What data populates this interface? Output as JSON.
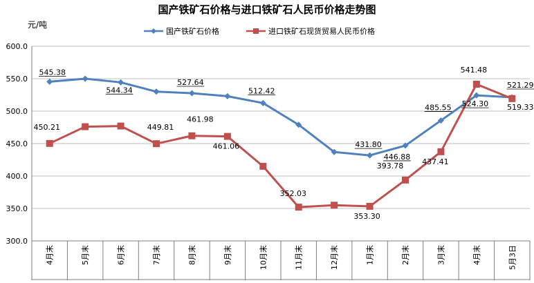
{
  "chart_data": {
    "type": "line",
    "title": "国产铁矿石价格与进口铁矿石人民币价格走势图",
    "ylabel": "元/吨",
    "xlabel": "",
    "ylim": [
      300,
      600
    ],
    "yticks": [
      "300.0",
      "350.0",
      "400.0",
      "450.0",
      "500.0",
      "550.0",
      "600.0"
    ],
    "grid": true,
    "legend_position": "top",
    "categories": [
      "4月末",
      "5月末",
      "6月末",
      "7月末",
      "8月末",
      "9月末",
      "10月末",
      "11月末",
      "12月末",
      "1月末",
      "2月末",
      "3月末",
      "4月末",
      "5月3日"
    ],
    "series": [
      {
        "name": "国产铁矿石价格",
        "color": "#4F81BD",
        "marker": "diamond",
        "values": [
          545.38,
          550.0,
          544.34,
          530.0,
          527.64,
          523.0,
          512.42,
          479.0,
          437.0,
          431.8,
          446.88,
          485.55,
          524.3,
          521.29
        ],
        "labels": [
          "545.38",
          "",
          "544.34",
          "",
          "527.64",
          "",
          "512.42",
          "",
          "",
          "431.80",
          "446.88",
          "485.55",
          "524.30",
          "521.29"
        ]
      },
      {
        "name": "进口铁矿石现货贸易人民币价格",
        "color": "#C0504D",
        "marker": "square",
        "values": [
          450.21,
          476.0,
          477.0,
          449.81,
          461.98,
          461.06,
          415.0,
          352.03,
          355.0,
          353.3,
          393.78,
          437.41,
          541.48,
          519.33
        ],
        "labels": [
          "450.21",
          "",
          "",
          "449.81",
          "461.98",
          "461.06",
          "",
          "352.03",
          "",
          "353.30",
          "393.78",
          "437.41",
          "541.48",
          "519.33"
        ]
      }
    ]
  }
}
